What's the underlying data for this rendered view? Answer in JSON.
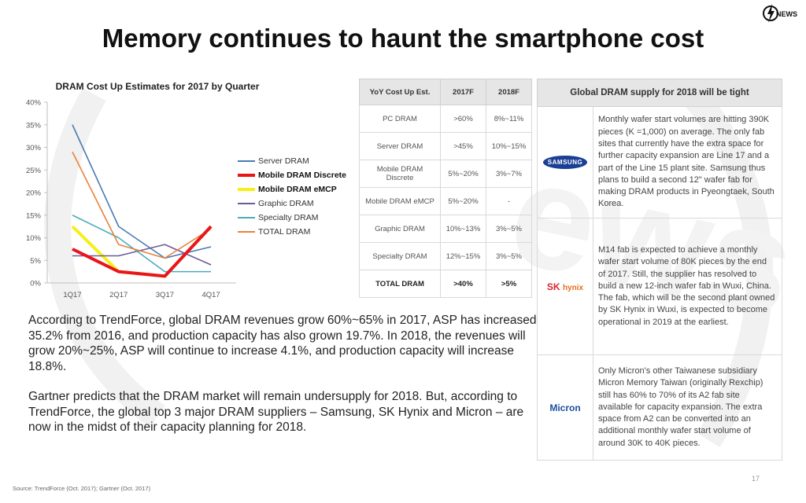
{
  "title": "Memory continues to haunt the smartphone cost",
  "brand": {
    "logo_text": "NEWS"
  },
  "colors": {
    "server": "#4a7ab0",
    "mobile_discrete": "#e8161c",
    "mobile_emcp": "#f6ef18",
    "graphic": "#6d5a98",
    "specialty": "#4baac0",
    "total": "#e8823a"
  },
  "chart_data": {
    "type": "line",
    "title": "DRAM Cost Up Estimates for 2017 by Quarter",
    "categories": [
      "1Q17",
      "2Q17",
      "3Q17",
      "4Q17"
    ],
    "ylim": [
      0,
      40
    ],
    "yticks": [
      "0%",
      "5%",
      "10%",
      "15%",
      "20%",
      "25%",
      "30%",
      "35%",
      "40%"
    ],
    "legend_position": "right",
    "series": [
      {
        "name": "Server DRAM",
        "values": [
          35,
          12.5,
          5.5,
          8
        ],
        "color_key": "server",
        "emphasis": false
      },
      {
        "name": "Mobile DRAM Discrete",
        "values": [
          7.5,
          2.5,
          1.5,
          12.5
        ],
        "color_key": "mobile_discrete",
        "emphasis": true
      },
      {
        "name": "Mobile DRAM eMCP",
        "values": [
          12.5,
          2.5,
          1.5,
          12.5
        ],
        "color_key": "mobile_emcp",
        "emphasis": true
      },
      {
        "name": "Graphic DRAM",
        "values": [
          6,
          6,
          8.5,
          4
        ],
        "color_key": "graphic",
        "emphasis": false
      },
      {
        "name": "Specialty DRAM",
        "values": [
          15,
          10,
          2.5,
          2.5
        ],
        "color_key": "specialty",
        "emphasis": false
      },
      {
        "name": "TOTAL DRAM",
        "values": [
          29,
          8.5,
          5.5,
          12
        ],
        "color_key": "total",
        "emphasis": false
      }
    ]
  },
  "yoy_table": {
    "headers": [
      "YoY Cost Up Est.",
      "2017F",
      "2018F"
    ],
    "rows": [
      [
        "PC DRAM",
        ">60%",
        "8%~11%"
      ],
      [
        "Server DRAM",
        ">45%",
        "10%~15%"
      ],
      [
        "Mobile DRAM Discrete",
        "5%~20%",
        "3%~7%"
      ],
      [
        "Mobile DRAM eMCP",
        "5%~20%",
        "-"
      ],
      [
        "Graphic DRAM",
        "10%~13%",
        "3%~5%"
      ],
      [
        "Specialty DRAM",
        "12%~15%",
        "3%~5%"
      ],
      [
        "TOTAL DRAM",
        ">40%",
        ">5%"
      ]
    ]
  },
  "supply": {
    "header": "Global DRAM supply for 2018 will be tight",
    "rows": [
      {
        "logo": "SAMSUNG",
        "text": "Monthly wafer start volumes are hitting 390K pieces (K =1,000) on average. The only fab sites that currently have the extra space for further capacity expansion are Line 17 and a part of the Line 15 plant site. Samsung thus plans to build a second 12\" wafer fab for making DRAM products in Pyeongtaek, South Korea."
      },
      {
        "logo": "SK",
        "logo2": "hynix",
        "text": "M14 fab is expected to achieve a monthly wafer start volume of 80K pieces by the end of 2017. Still, the supplier has resolved to build a new 12-inch wafer fab in Wuxi, China. The fab, which will be the second plant owned by SK Hynix in Wuxi, is expected to become operational in 2019 at the earliest."
      },
      {
        "logo": "Micron",
        "text": "Only Micron's other Taiwanese subsidiary Micron Memory Taiwan (originally Rexchip) still has 60% to 70% of its A2 fab site available for capacity expansion. The extra space from A2 can be converted into an additional monthly wafer start volume of around 30K to 40K pieces."
      }
    ]
  },
  "body": {
    "p1": "According to TrendForce, global DRAM revenues grow 60%~65% in 2017, ASP has increased 35.2% from 2016, and production capacity has also grown 19.7%. In 2018, the revenues will grow 20%~25%, ASP will continue to increase 4.1%, and production capacity will increase 18.8%.",
    "p2": "Gartner predicts that the DRAM market will remain undersupply for 2018. But, according to TrendForce, the global top 3 major DRAM suppliers – Samsung, SK Hynix and Micron – are now in the midst of their capacity planning for 2018."
  },
  "source": "Source: TrendForce (Oct. 2017); Gartner (Oct. 2017)",
  "page_number": "17"
}
